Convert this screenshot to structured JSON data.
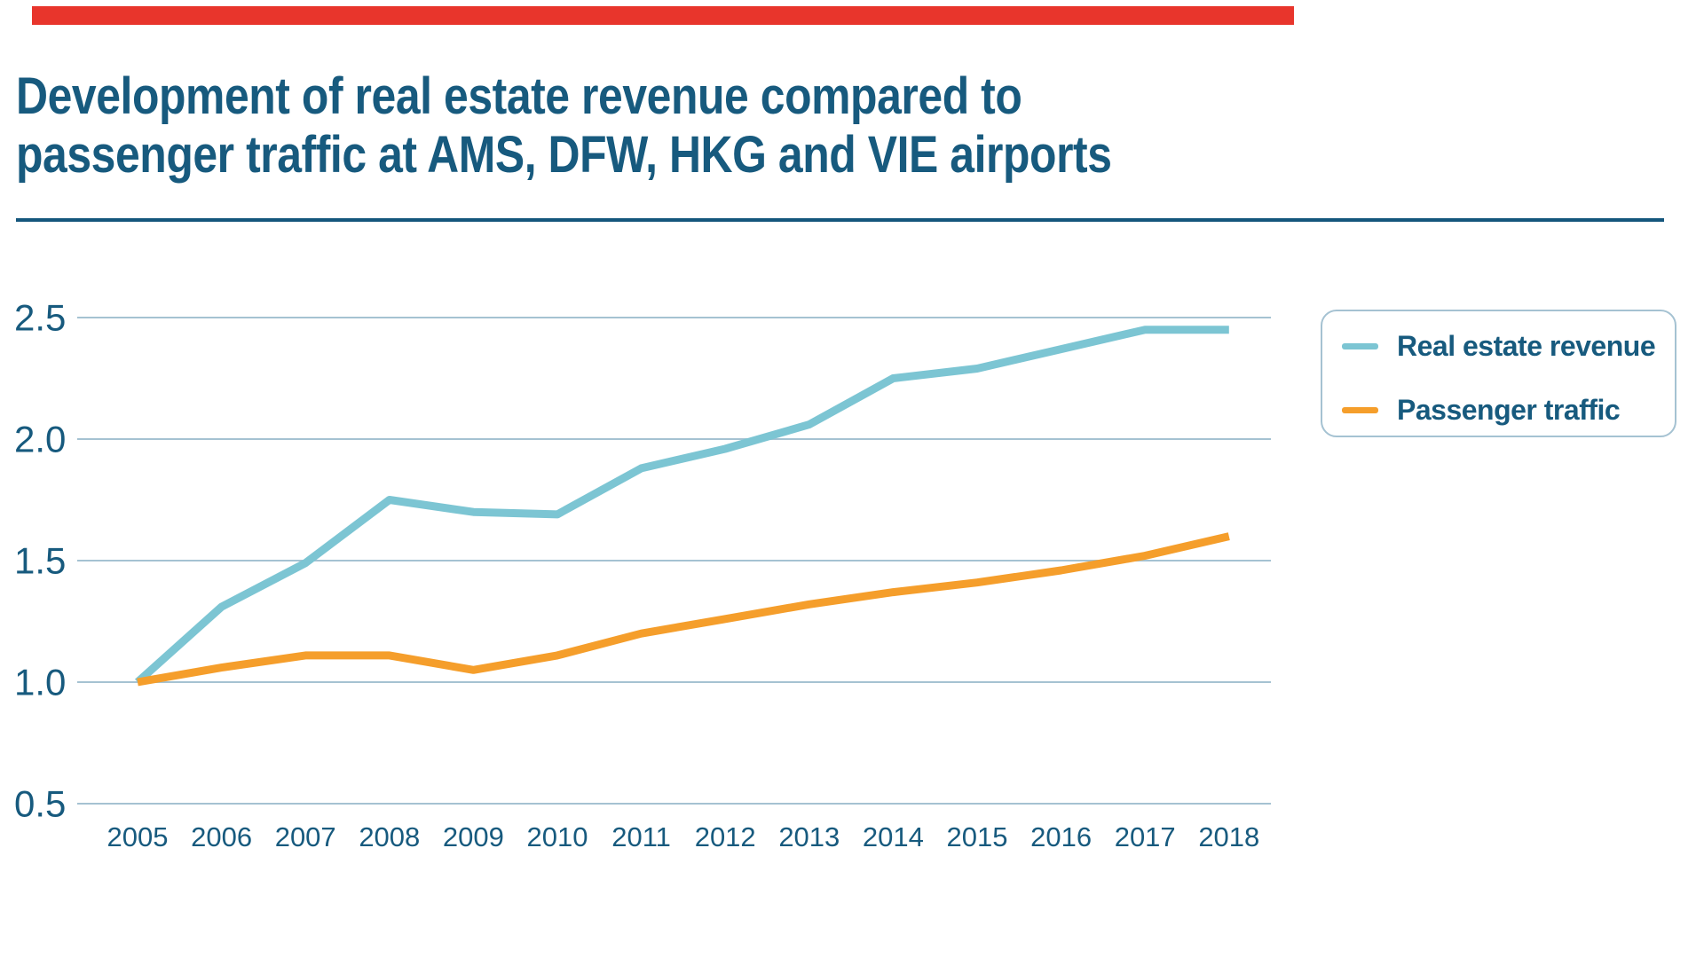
{
  "page": {
    "background": "#ffffff",
    "top_bar_color": "#e8352c"
  },
  "header": {
    "title_line1": "Development of real estate revenue compared to",
    "title_line2": "passenger traffic at AMS, DFW, HKG and VIE airports",
    "title_color": "#175a7e",
    "divider_color": "#14567c"
  },
  "chart_data": {
    "type": "line",
    "x": [
      2005,
      2006,
      2007,
      2008,
      2009,
      2010,
      2011,
      2012,
      2013,
      2014,
      2015,
      2016,
      2017,
      2018
    ],
    "x_labels": [
      "2005",
      "2006",
      "2007",
      "2008",
      "2009",
      "2010",
      "2011",
      "2012",
      "2013",
      "2014",
      "2015",
      "2016",
      "2017",
      "2018"
    ],
    "series": [
      {
        "name": "Real estate revenue",
        "color": "#7cc5d3",
        "values": [
          1.0,
          1.31,
          1.49,
          1.75,
          1.7,
          1.69,
          1.88,
          1.96,
          2.06,
          2.25,
          2.29,
          2.37,
          2.45,
          2.45
        ]
      },
      {
        "name": "Passenger traffic",
        "color": "#f59e2b",
        "values": [
          1.0,
          1.06,
          1.11,
          1.11,
          1.05,
          1.11,
          1.2,
          1.26,
          1.32,
          1.37,
          1.41,
          1.46,
          1.52,
          1.6
        ]
      }
    ],
    "ylim": [
      0.5,
      2.5
    ],
    "yticks": [
      2.5,
      2.0,
      1.5,
      1.0,
      0.5
    ],
    "ytick_labels": [
      "2.5",
      "2.0",
      "1.5",
      "1.0",
      "0.5"
    ],
    "grid": "horizontal",
    "gridline_color": "#a5c2d2",
    "legend_position": "right",
    "title": "Development of real estate revenue compared to passenger traffic at AMS, DFW, HKG and VIE airports",
    "xlabel": "",
    "ylabel": ""
  },
  "legend": {
    "items": [
      {
        "label": "Real estate revenue",
        "color": "#7cc5d3"
      },
      {
        "label": "Passenger traffic",
        "color": "#f59e2b"
      }
    ]
  }
}
